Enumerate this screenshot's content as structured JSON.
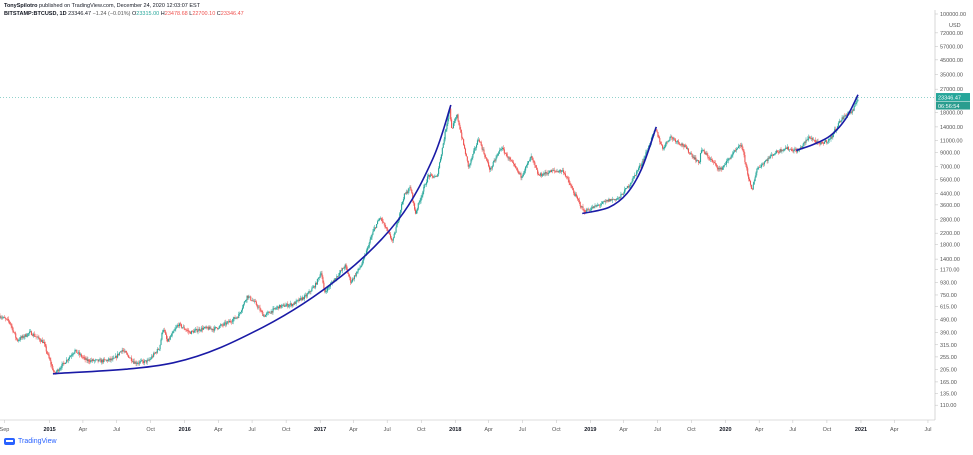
{
  "header": {
    "author": "TonySpilotro",
    "published": "published on TradingView.com, December 24, 2020 12:03:07 EST",
    "symbol": "BITSTAMP:BTCUSD, 1D",
    "last": "23346.47",
    "change": "−1.24 (−0.01%)",
    "open_label": "O",
    "open": "23315.00",
    "high_label": "H",
    "high": "23478.68",
    "low_label": "L",
    "low": "22700.10",
    "close_label": "C",
    "close": "23346.47"
  },
  "footer": {
    "brand": "TradingView"
  },
  "colors": {
    "up": "#26a69a",
    "down": "#ef5350",
    "curve": "#1a1aa6",
    "price_tag": "#26a69a",
    "countdown_tag": "#2a9d8f"
  },
  "chart_data": {
    "type": "candlestick",
    "series_name": "BITSTAMP:BTCUSD, 1D",
    "y_scale": "log",
    "ylim": [
      85,
      100000
    ],
    "y_unit": "USD",
    "x_range": [
      "2014-08-20",
      "2021-07-20"
    ],
    "y_ticks": [
      100000,
      72000,
      57000,
      45000,
      35000,
      27000,
      18000,
      14000,
      11000,
      9000,
      7000,
      5600,
      4400,
      3600,
      2800,
      2200,
      1800,
      1400,
      1170,
      930,
      750,
      615,
      490,
      390,
      315,
      255,
      205,
      165,
      135,
      110
    ],
    "y_tick_labels": [
      "100000.00",
      "72000.00",
      "57000.00",
      "45000.00",
      "35000.00",
      "27000.00",
      "18000.00",
      "14000.00",
      "11000.00",
      "9000.00",
      "7000.00",
      "5600.00",
      "4400.00",
      "3600.00",
      "2800.00",
      "2200.00",
      "1800.00",
      "1400.00",
      "1170.00",
      "930.00",
      "750.00",
      "615.00",
      "490.00",
      "390.00",
      "315.00",
      "255.00",
      "205.00",
      "165.00",
      "135.00",
      "110.00"
    ],
    "x_ticks": [
      {
        "date": "2014-09-01",
        "label": "Sep",
        "bold": false
      },
      {
        "date": "2015-01-01",
        "label": "2015",
        "bold": true
      },
      {
        "date": "2015-04-01",
        "label": "Apr",
        "bold": false
      },
      {
        "date": "2015-07-01",
        "label": "Jul",
        "bold": false
      },
      {
        "date": "2015-10-01",
        "label": "Oct",
        "bold": false
      },
      {
        "date": "2016-01-01",
        "label": "2016",
        "bold": true
      },
      {
        "date": "2016-04-01",
        "label": "Apr",
        "bold": false
      },
      {
        "date": "2016-07-01",
        "label": "Jul",
        "bold": false
      },
      {
        "date": "2016-10-01",
        "label": "Oct",
        "bold": false
      },
      {
        "date": "2017-01-01",
        "label": "2017",
        "bold": true
      },
      {
        "date": "2017-04-01",
        "label": "Apr",
        "bold": false
      },
      {
        "date": "2017-07-01",
        "label": "Jul",
        "bold": false
      },
      {
        "date": "2017-10-01",
        "label": "Oct",
        "bold": false
      },
      {
        "date": "2018-01-01",
        "label": "2018",
        "bold": true
      },
      {
        "date": "2018-04-01",
        "label": "Apr",
        "bold": false
      },
      {
        "date": "2018-07-01",
        "label": "Jul",
        "bold": false
      },
      {
        "date": "2018-10-01",
        "label": "Oct",
        "bold": false
      },
      {
        "date": "2019-01-01",
        "label": "2019",
        "bold": true
      },
      {
        "date": "2019-04-01",
        "label": "Apr",
        "bold": false
      },
      {
        "date": "2019-07-01",
        "label": "Jul",
        "bold": false
      },
      {
        "date": "2019-10-01",
        "label": "Oct",
        "bold": false
      },
      {
        "date": "2020-01-01",
        "label": "2020",
        "bold": true
      },
      {
        "date": "2020-04-01",
        "label": "Apr",
        "bold": false
      },
      {
        "date": "2020-07-01",
        "label": "Jul",
        "bold": false
      },
      {
        "date": "2020-10-01",
        "label": "Oct",
        "bold": false
      },
      {
        "date": "2021-01-01",
        "label": "2021",
        "bold": true
      },
      {
        "date": "2021-04-01",
        "label": "Apr",
        "bold": false
      },
      {
        "date": "2021-07-01",
        "label": "Jul",
        "bold": false
      }
    ],
    "price_path": [
      [
        "2014-08-20",
        520
      ],
      [
        "2014-09-15",
        470
      ],
      [
        "2014-10-05",
        340
      ],
      [
        "2014-11-10",
        390
      ],
      [
        "2014-12-15",
        330
      ],
      [
        "2015-01-14",
        190
      ],
      [
        "2015-02-10",
        230
      ],
      [
        "2015-03-10",
        285
      ],
      [
        "2015-04-10",
        240
      ],
      [
        "2015-05-20",
        237
      ],
      [
        "2015-06-25",
        245
      ],
      [
        "2015-07-15",
        290
      ],
      [
        "2015-08-20",
        230
      ],
      [
        "2015-09-25",
        237
      ],
      [
        "2015-10-25",
        300
      ],
      [
        "2015-11-04",
        430
      ],
      [
        "2015-11-15",
        330
      ],
      [
        "2015-12-15",
        450
      ],
      [
        "2016-01-15",
        390
      ],
      [
        "2016-02-20",
        420
      ],
      [
        "2016-03-20",
        415
      ],
      [
        "2016-04-25",
        460
      ],
      [
        "2016-05-25",
        520
      ],
      [
        "2016-06-18",
        740
      ],
      [
        "2016-07-10",
        650
      ],
      [
        "2016-08-02",
        520
      ],
      [
        "2016-09-10",
        610
      ],
      [
        "2016-10-20",
        640
      ],
      [
        "2016-11-25",
        740
      ],
      [
        "2016-12-20",
        900
      ],
      [
        "2017-01-04",
        1130
      ],
      [
        "2017-01-12",
        780
      ],
      [
        "2017-02-20",
        1080
      ],
      [
        "2017-03-10",
        1250
      ],
      [
        "2017-03-25",
        940
      ],
      [
        "2017-04-25",
        1300
      ],
      [
        "2017-05-25",
        2300
      ],
      [
        "2017-06-12",
        2900
      ],
      [
        "2017-07-16",
        1900
      ],
      [
        "2017-08-15",
        4200
      ],
      [
        "2017-09-02",
        4900
      ],
      [
        "2017-09-15",
        3100
      ],
      [
        "2017-10-20",
        6000
      ],
      [
        "2017-11-12",
        5800
      ],
      [
        "2017-11-28",
        10000
      ],
      [
        "2017-12-17",
        19500
      ],
      [
        "2017-12-22",
        13500
      ],
      [
        "2018-01-06",
        17000
      ],
      [
        "2018-02-06",
        6900
      ],
      [
        "2018-03-05",
        11500
      ],
      [
        "2018-04-05",
        6600
      ],
      [
        "2018-05-05",
        9800
      ],
      [
        "2018-06-28",
        5900
      ],
      [
        "2018-07-25",
        8300
      ],
      [
        "2018-08-14",
        6000
      ],
      [
        "2018-09-20",
        6500
      ],
      [
        "2018-10-20",
        6500
      ],
      [
        "2018-11-20",
        4300
      ],
      [
        "2018-12-15",
        3200
      ],
      [
        "2019-01-20",
        3550
      ],
      [
        "2019-02-20",
        3900
      ],
      [
        "2019-03-20",
        4050
      ],
      [
        "2019-04-20",
        5300
      ],
      [
        "2019-05-25",
        8000
      ],
      [
        "2019-06-26",
        13500
      ],
      [
        "2019-07-15",
        9600
      ],
      [
        "2019-08-05",
        11800
      ],
      [
        "2019-09-10",
        10100
      ],
      [
        "2019-10-22",
        7400
      ],
      [
        "2019-10-27",
        9500
      ],
      [
        "2019-12-18",
        6600
      ],
      [
        "2020-01-20",
        8700
      ],
      [
        "2020-02-13",
        10300
      ],
      [
        "2020-03-12",
        4500
      ],
      [
        "2020-03-25",
        6700
      ],
      [
        "2020-05-10",
        8800
      ],
      [
        "2020-06-10",
        9700
      ],
      [
        "2020-07-15",
        9200
      ],
      [
        "2020-08-15",
        11800
      ],
      [
        "2020-09-10",
        10300
      ],
      [
        "2020-10-10",
        11300
      ],
      [
        "2020-11-05",
        15500
      ],
      [
        "2020-11-25",
        17700
      ],
      [
        "2020-12-10",
        18300
      ],
      [
        "2020-12-24",
        23346
      ]
    ],
    "annotations": [
      {
        "type": "curve",
        "points": [
          [
            "2015-01-10",
            190
          ],
          [
            "2015-12-01",
            230
          ],
          [
            "2016-08-01",
            430
          ],
          [
            "2017-03-01",
            1050
          ],
          [
            "2017-08-01",
            2800
          ],
          [
            "2017-11-01",
            8000
          ],
          [
            "2017-12-20",
            20500
          ]
        ]
      },
      {
        "type": "curve",
        "points": [
          [
            "2018-12-10",
            3100
          ],
          [
            "2019-02-20",
            3450
          ],
          [
            "2019-04-10",
            4400
          ],
          [
            "2019-05-20",
            6800
          ],
          [
            "2019-06-28",
            14000
          ]
        ]
      },
      {
        "type": "curve",
        "points": [
          [
            "2020-07-10",
            9300
          ],
          [
            "2020-08-25",
            10300
          ],
          [
            "2020-10-10",
            12000
          ],
          [
            "2020-11-20",
            16000
          ],
          [
            "2020-12-24",
            24500
          ]
        ]
      }
    ],
    "last_price_label": "23346.47",
    "countdown_label": "06:56:54",
    "legend": "none",
    "grid": false
  }
}
